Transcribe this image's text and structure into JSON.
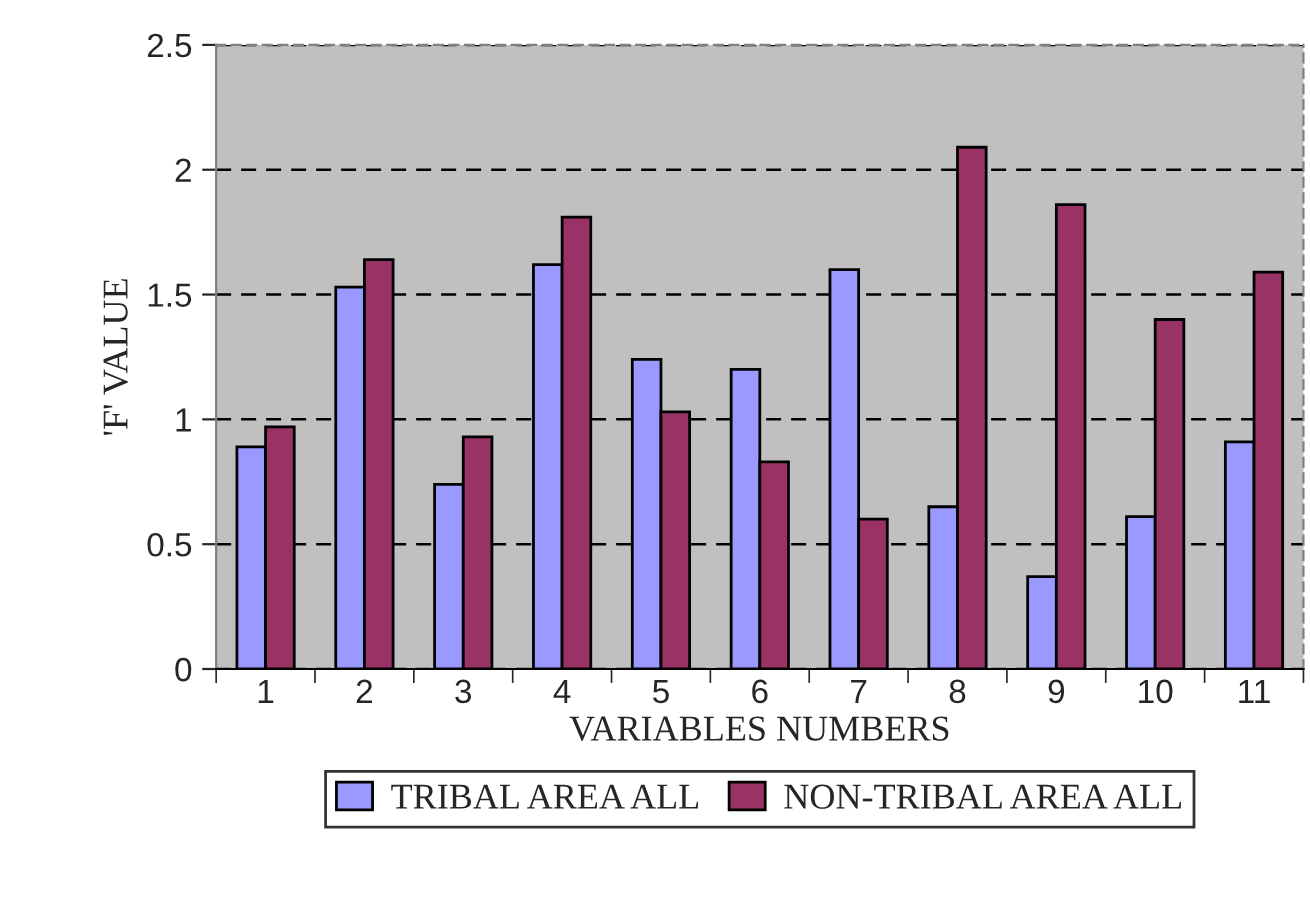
{
  "chart_data": {
    "type": "bar",
    "xlabel": "VARIABLES NUMBERS",
    "ylabel": "'F' VALUE",
    "categories": [
      "1",
      "2",
      "3",
      "4",
      "5",
      "6",
      "7",
      "8",
      "9",
      "10",
      "11"
    ],
    "series": [
      {
        "name": "TRIBAL AREA ALL",
        "color": "#9999ff",
        "values": [
          0.89,
          1.53,
          0.74,
          1.62,
          1.24,
          1.2,
          1.6,
          0.65,
          0.37,
          0.61,
          0.91
        ]
      },
      {
        "name": "NON-TRIBAL AREA ALL",
        "color": "#993366",
        "values": [
          0.97,
          1.64,
          0.93,
          1.81,
          1.03,
          0.83,
          0.6,
          2.09,
          1.86,
          1.4,
          1.59
        ]
      }
    ],
    "ylim": [
      0,
      2.5
    ],
    "yticks": [
      0,
      0.5,
      1,
      1.5,
      2,
      2.5
    ],
    "grid": "y",
    "legend": "bottom"
  }
}
